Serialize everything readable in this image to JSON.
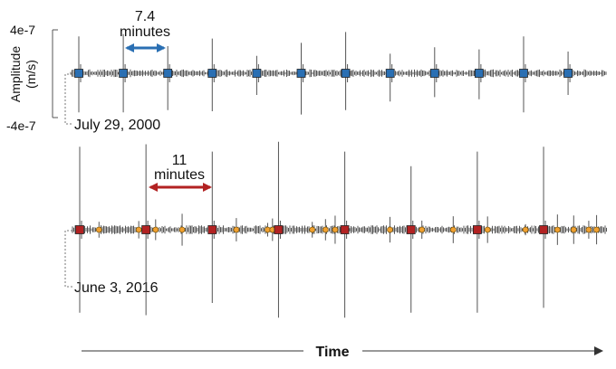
{
  "chart_data": [
    {
      "type": "line",
      "title": "",
      "xlabel": "Time",
      "ylabel": "Amplitude (m/s)",
      "ylabel_lines": [
        "Amplitude",
        "(m/s)"
      ],
      "yticks": [
        "4e-7",
        "-4e-7"
      ],
      "ylim": [
        -4e-07,
        4e-07
      ],
      "date_label": "July 29, 2000",
      "interval": {
        "value": "7.4",
        "unit": "minutes"
      },
      "events": [
        {
          "t": 0,
          "up": 3.4e-07,
          "down": -3.6e-07
        },
        {
          "t": 7.4,
          "up": 3.6e-07,
          "down": -3.6e-07
        },
        {
          "t": 14.8,
          "up": 2.5e-07,
          "down": -3.4e-07
        },
        {
          "t": 22.2,
          "up": 3.2e-07,
          "down": -3.5e-07
        },
        {
          "t": 29.6,
          "up": 1.6e-07,
          "down": -2e-07
        },
        {
          "t": 37.0,
          "up": 2.8e-07,
          "down": -3.8e-07
        },
        {
          "t": 44.4,
          "up": 3.8e-07,
          "down": -3.4e-07
        },
        {
          "t": 51.8,
          "up": 1.8e-07,
          "down": -2.6e-07
        },
        {
          "t": 59.2,
          "up": 2.4e-07,
          "down": -2.2e-07
        },
        {
          "t": 66.6,
          "up": 2.2e-07,
          "down": -2.4e-07
        },
        {
          "t": 74.0,
          "up": 3.4e-07,
          "down": -3.6e-07
        },
        {
          "t": 81.4,
          "up": 2e-07,
          "down": -2e-07
        }
      ],
      "marker_color": "#2a6fb3",
      "arrow_color": "#2a6fb3",
      "trace_color": "#555555"
    },
    {
      "type": "line",
      "title": "",
      "date_label": "June 3, 2016",
      "interval": {
        "value": "11",
        "unit": "minutes"
      },
      "events": [
        {
          "t": 0,
          "up": 3.4e-07,
          "down": -3.4e-07
        },
        {
          "t": 11,
          "up": 3.5e-07,
          "down": -3.5e-07
        },
        {
          "t": 22,
          "up": 3.2e-07,
          "down": -3e-07
        },
        {
          "t": 33,
          "up": 3.6e-07,
          "down": -3.6e-07
        },
        {
          "t": 44,
          "up": 3.2e-07,
          "down": -3.6e-07
        },
        {
          "t": 55,
          "up": 2.6e-07,
          "down": -3.4e-07
        },
        {
          "t": 66,
          "up": 3.2e-07,
          "down": -3.4e-07
        },
        {
          "t": 77,
          "up": 3.4e-07,
          "down": -3.2e-07
        }
      ],
      "small_events": [
        3.2,
        9.8,
        12.6,
        17.0,
        26.0,
        31.2,
        32.0,
        38.6,
        40.8,
        42.4,
        51.5,
        56.8,
        62.0,
        67.7,
        74.0,
        79.3,
        82.0,
        84.5,
        85.8
      ],
      "marker_color": "#b22222",
      "small_marker_color": "#f0a030",
      "arrow_color": "#b22222",
      "trace_color": "#555555"
    }
  ],
  "xaxis_label": "Time"
}
